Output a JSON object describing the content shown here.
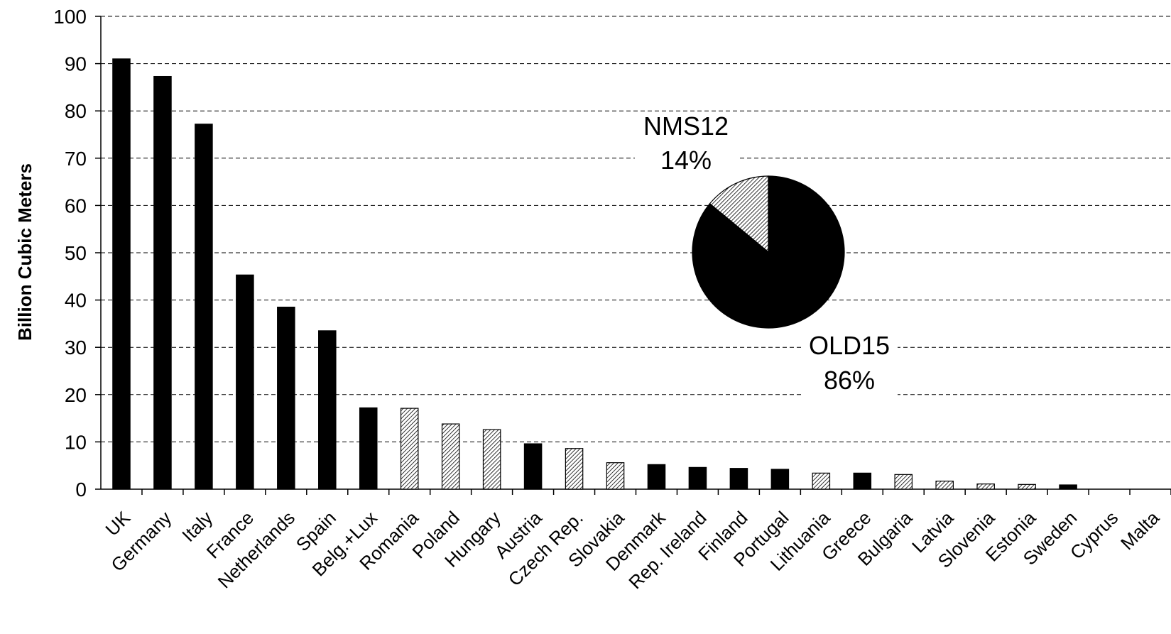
{
  "chart_data": [
    {
      "type": "bar",
      "title": "",
      "xlabel": "",
      "ylabel": "Billion Cubic Meters",
      "ylim": [
        0,
        100
      ],
      "yticks": [
        0,
        10,
        20,
        30,
        40,
        50,
        60,
        70,
        80,
        90,
        100
      ],
      "grid": "horizontal dashed",
      "categories": [
        "UK",
        "Germany",
        "Italy",
        "France",
        "Netherlands",
        "Spain",
        "Belg.+Lux",
        "Romania",
        "Poland",
        "Hungary",
        "Austria",
        "Czech Rep.",
        "Slovakia",
        "Denmark",
        "Rep. Ireland",
        "Finland",
        "Portugal",
        "Lithuania",
        "Greece",
        "Bulgaria",
        "Latvia",
        "Slovenia",
        "Estonia",
        "Sweden",
        "Cyprus",
        "Malta"
      ],
      "values": [
        91,
        87.3,
        77.2,
        45.3,
        38.5,
        33.5,
        17.2,
        17.1,
        13.8,
        12.6,
        9.6,
        8.6,
        5.6,
        5.2,
        4.6,
        4.4,
        4.2,
        3.4,
        3.4,
        3.1,
        1.7,
        1.1,
        1.0,
        0.9,
        0,
        0
      ],
      "group": [
        "OLD15",
        "OLD15",
        "OLD15",
        "OLD15",
        "OLD15",
        "OLD15",
        "OLD15",
        "NMS12",
        "NMS12",
        "NMS12",
        "OLD15",
        "NMS12",
        "NMS12",
        "OLD15",
        "OLD15",
        "OLD15",
        "OLD15",
        "NMS12",
        "OLD15",
        "NMS12",
        "NMS12",
        "NMS12",
        "NMS12",
        "OLD15",
        "NMS12",
        "NMS12"
      ],
      "colors": {
        "OLD15": "#000000",
        "NMS12": "hatched"
      }
    },
    {
      "type": "pie",
      "slices": [
        {
          "name": "NMS12",
          "value": 14,
          "label_line1": "NMS12",
          "label_line2": "14%",
          "fill": "hatched"
        },
        {
          "name": "OLD15",
          "value": 86,
          "label_line1": "OLD15",
          "label_line2": "86%",
          "fill": "#000000"
        }
      ]
    }
  ]
}
